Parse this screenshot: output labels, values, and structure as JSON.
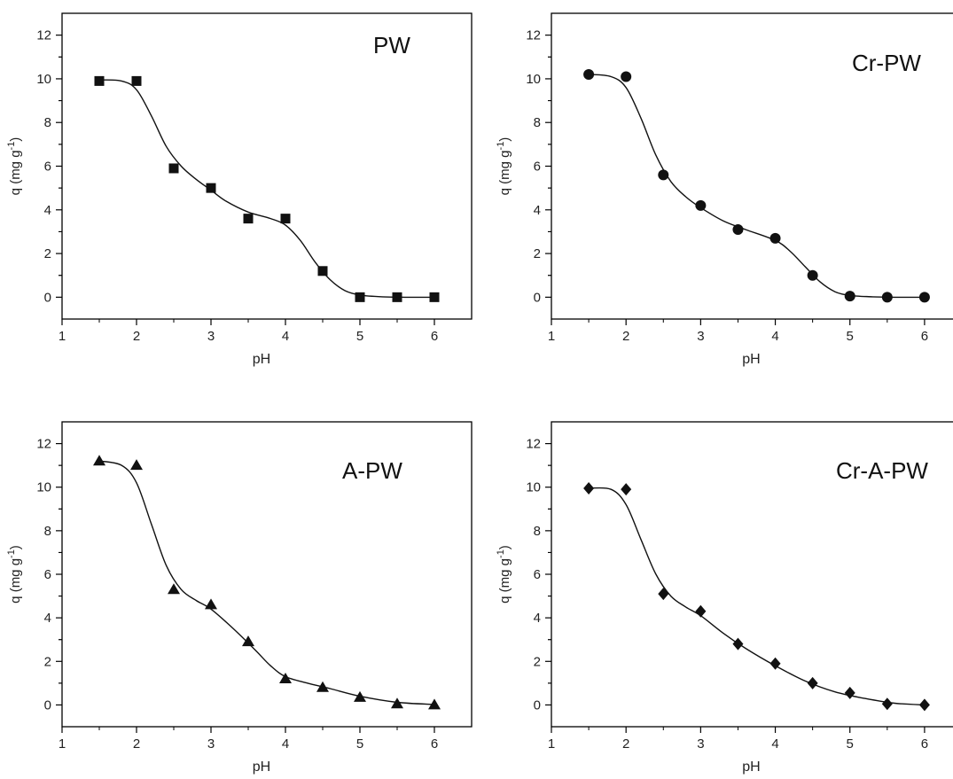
{
  "chart_data": [
    {
      "type": "scatter",
      "title": "PW",
      "xlabel": "pH",
      "ylabel_main": "q (mg g",
      "ylabel_sup": "-1",
      "ylabel_close": ")",
      "xlim": [
        1,
        6.5
      ],
      "ylim": [
        -1,
        13
      ],
      "xticks": [
        1,
        2,
        3,
        4,
        5,
        6
      ],
      "yticks": [
        0,
        2,
        4,
        6,
        8,
        10,
        12
      ],
      "marker": "square",
      "grid": false,
      "points": [
        {
          "x": 1.5,
          "y": 9.9
        },
        {
          "x": 2.0,
          "y": 9.9
        },
        {
          "x": 2.5,
          "y": 5.9
        },
        {
          "x": 3.0,
          "y": 5.0
        },
        {
          "x": 3.5,
          "y": 3.6
        },
        {
          "x": 4.0,
          "y": 3.6
        },
        {
          "x": 4.5,
          "y": 1.2
        },
        {
          "x": 5.0,
          "y": 0.0
        },
        {
          "x": 5.5,
          "y": 0.0
        },
        {
          "x": 6.0,
          "y": 0.0
        }
      ],
      "fit": [
        [
          1.5,
          9.95
        ],
        [
          1.8,
          9.9
        ],
        [
          2.0,
          9.5
        ],
        [
          2.2,
          8.3
        ],
        [
          2.4,
          6.9
        ],
        [
          2.6,
          6.0
        ],
        [
          2.8,
          5.4
        ],
        [
          3.0,
          4.9
        ],
        [
          3.2,
          4.4
        ],
        [
          3.5,
          3.9
        ],
        [
          3.8,
          3.6
        ],
        [
          4.0,
          3.3
        ],
        [
          4.2,
          2.6
        ],
        [
          4.4,
          1.6
        ],
        [
          4.6,
          0.8
        ],
        [
          4.8,
          0.3
        ],
        [
          5.0,
          0.1
        ],
        [
          5.3,
          0.02
        ],
        [
          5.6,
          0.0
        ],
        [
          6.0,
          0.0
        ]
      ]
    },
    {
      "type": "scatter",
      "title": "Cr-PW",
      "xlabel": "pH",
      "ylabel_main": "q (mg g",
      "ylabel_sup": "-1",
      "ylabel_close": ")",
      "xlim": [
        1,
        6.5
      ],
      "ylim": [
        -1,
        13
      ],
      "xticks": [
        1,
        2,
        3,
        4,
        5,
        6
      ],
      "yticks": [
        0,
        2,
        4,
        6,
        8,
        10,
        12
      ],
      "marker": "circle",
      "grid": false,
      "points": [
        {
          "x": 1.5,
          "y": 10.2
        },
        {
          "x": 2.0,
          "y": 10.1
        },
        {
          "x": 2.5,
          "y": 5.6
        },
        {
          "x": 3.0,
          "y": 4.2
        },
        {
          "x": 3.5,
          "y": 3.1
        },
        {
          "x": 4.0,
          "y": 2.7
        },
        {
          "x": 4.5,
          "y": 1.0
        },
        {
          "x": 5.0,
          "y": 0.05
        },
        {
          "x": 5.5,
          "y": 0.0
        },
        {
          "x": 6.0,
          "y": 0.0
        }
      ],
      "fit": [
        [
          1.5,
          10.2
        ],
        [
          1.8,
          10.1
        ],
        [
          2.0,
          9.6
        ],
        [
          2.2,
          8.2
        ],
        [
          2.4,
          6.5
        ],
        [
          2.6,
          5.3
        ],
        [
          2.8,
          4.6
        ],
        [
          3.0,
          4.1
        ],
        [
          3.3,
          3.5
        ],
        [
          3.6,
          3.1
        ],
        [
          4.0,
          2.6
        ],
        [
          4.2,
          2.1
        ],
        [
          4.4,
          1.4
        ],
        [
          4.6,
          0.7
        ],
        [
          4.8,
          0.25
        ],
        [
          5.0,
          0.08
        ],
        [
          5.3,
          0.02
        ],
        [
          5.6,
          0.0
        ],
        [
          6.0,
          0.0
        ]
      ]
    },
    {
      "type": "scatter",
      "title": "A-PW",
      "xlabel": "pH",
      "ylabel_main": "q (mg g",
      "ylabel_sup": "-1",
      "ylabel_close": ")",
      "xlim": [
        1,
        6.5
      ],
      "ylim": [
        -1,
        13
      ],
      "xticks": [
        1,
        2,
        3,
        4,
        5,
        6
      ],
      "yticks": [
        0,
        2,
        4,
        6,
        8,
        10,
        12
      ],
      "marker": "triangle",
      "grid": false,
      "points": [
        {
          "x": 1.5,
          "y": 11.2
        },
        {
          "x": 2.0,
          "y": 11.0
        },
        {
          "x": 2.5,
          "y": 5.3
        },
        {
          "x": 3.0,
          "y": 4.6
        },
        {
          "x": 3.5,
          "y": 2.9
        },
        {
          "x": 4.0,
          "y": 1.2
        },
        {
          "x": 4.5,
          "y": 0.8
        },
        {
          "x": 5.0,
          "y": 0.35
        },
        {
          "x": 5.5,
          "y": 0.05
        },
        {
          "x": 6.0,
          "y": 0.0
        }
      ],
      "fit": [
        [
          1.5,
          11.2
        ],
        [
          1.8,
          11.0
        ],
        [
          2.0,
          10.2
        ],
        [
          2.2,
          8.3
        ],
        [
          2.4,
          6.4
        ],
        [
          2.6,
          5.3
        ],
        [
          2.8,
          4.8
        ],
        [
          3.0,
          4.4
        ],
        [
          3.3,
          3.5
        ],
        [
          3.6,
          2.5
        ],
        [
          3.8,
          1.8
        ],
        [
          4.0,
          1.3
        ],
        [
          4.3,
          1.0
        ],
        [
          4.6,
          0.75
        ],
        [
          5.0,
          0.4
        ],
        [
          5.5,
          0.12
        ],
        [
          6.0,
          0.02
        ]
      ]
    },
    {
      "type": "scatter",
      "title": "Cr-A-PW",
      "xlabel": "pH",
      "ylabel_main": "q (mg g",
      "ylabel_sup": "-1",
      "ylabel_close": ")",
      "xlim": [
        1,
        6.5
      ],
      "ylim": [
        -1,
        13
      ],
      "xticks": [
        1,
        2,
        3,
        4,
        5,
        6
      ],
      "yticks": [
        0,
        2,
        4,
        6,
        8,
        10,
        12
      ],
      "marker": "diamond",
      "grid": false,
      "points": [
        {
          "x": 1.5,
          "y": 9.95
        },
        {
          "x": 2.0,
          "y": 9.9
        },
        {
          "x": 2.5,
          "y": 5.1
        },
        {
          "x": 3.0,
          "y": 4.3
        },
        {
          "x": 3.5,
          "y": 2.8
        },
        {
          "x": 4.0,
          "y": 1.9
        },
        {
          "x": 4.5,
          "y": 1.0
        },
        {
          "x": 5.0,
          "y": 0.55
        },
        {
          "x": 5.5,
          "y": 0.05
        },
        {
          "x": 6.0,
          "y": 0.0
        }
      ],
      "fit": [
        [
          1.5,
          9.95
        ],
        [
          1.8,
          9.9
        ],
        [
          2.0,
          9.2
        ],
        [
          2.2,
          7.6
        ],
        [
          2.4,
          6.0
        ],
        [
          2.6,
          5.0
        ],
        [
          2.8,
          4.5
        ],
        [
          3.0,
          4.1
        ],
        [
          3.3,
          3.3
        ],
        [
          3.6,
          2.6
        ],
        [
          4.0,
          1.8
        ],
        [
          4.4,
          1.1
        ],
        [
          4.8,
          0.6
        ],
        [
          5.2,
          0.3
        ],
        [
          5.6,
          0.08
        ],
        [
          6.0,
          0.0
        ]
      ]
    }
  ]
}
